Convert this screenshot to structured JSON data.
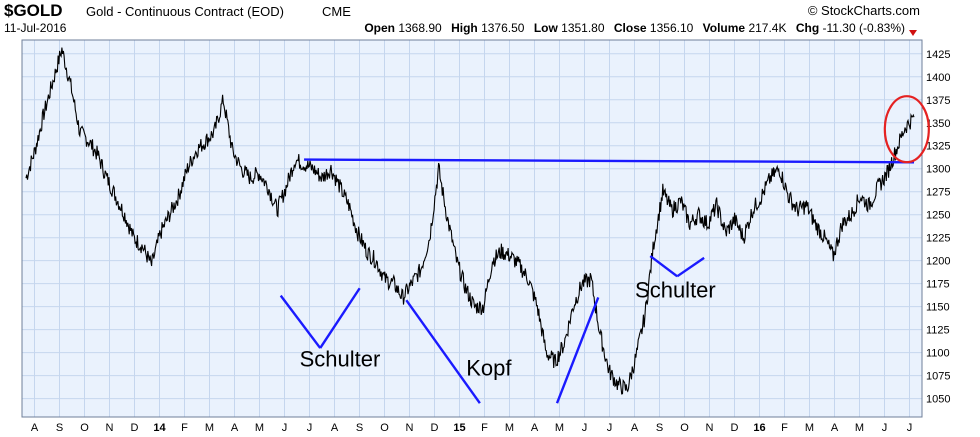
{
  "chart_data": {
    "type": "line",
    "symbol": "$GOLD",
    "title": "Gold - Continuous Contract (EOD)",
    "exchange": "CME",
    "date": "11-Jul-2016",
    "source": "© StockCharts.com",
    "stats": [
      {
        "label": "Open",
        "value": "1368.90"
      },
      {
        "label": "High",
        "value": "1376.50"
      },
      {
        "label": "Low",
        "value": "1351.80"
      },
      {
        "label": "Close",
        "value": "1356.10"
      },
      {
        "label": "Volume",
        "value": "217.4K"
      },
      {
        "label": "Chg",
        "value": "-11.30 (-0.83%)"
      }
    ],
    "ylim": [
      1030,
      1440
    ],
    "y_ticks": [
      1050,
      1075,
      1100,
      1125,
      1150,
      1175,
      1200,
      1225,
      1250,
      1275,
      1300,
      1325,
      1350,
      1375,
      1400,
      1425
    ],
    "x_ticks": [
      "A",
      "S",
      "O",
      "N",
      "D",
      "14",
      "F",
      "M",
      "A",
      "M",
      "J",
      "J",
      "A",
      "S",
      "O",
      "N",
      "D",
      "15",
      "F",
      "M",
      "A",
      "M",
      "J",
      "J",
      "A",
      "S",
      "O",
      "N",
      "D",
      "16",
      "F",
      "M",
      "A",
      "M",
      "J",
      "J"
    ],
    "x_bold": [
      "14",
      "15",
      "16"
    ],
    "series": [
      {
        "x": [
          0,
          0.5,
          1,
          1.5,
          2,
          2.5,
          3,
          3.5,
          4,
          4.5,
          5,
          5.5,
          6,
          6.5,
          7,
          7.5,
          8,
          8.5,
          9,
          9.5,
          10,
          10.5,
          11,
          11.5,
          12,
          12.5,
          13,
          13.5,
          14,
          14.5,
          15,
          15.5,
          16,
          16.5,
          17,
          17.5,
          18,
          18.5,
          19,
          19.5,
          20,
          20.5,
          21,
          21.5,
          22,
          22.5,
          23,
          23.5,
          24,
          24.5,
          25,
          25.5,
          26,
          26.5,
          27,
          27.5,
          28,
          28.5,
          29,
          29.5,
          30,
          30.5,
          31,
          31.5,
          32,
          32.5,
          33,
          33.5,
          34,
          34.5,
          35
        ],
        "y": [
          1290,
          1320,
          1360,
          1395,
          1430,
          1390,
          1340,
          1330,
          1315,
          1290,
          1270,
          1250,
          1225,
          1215,
          1195,
          1230,
          1250,
          1270,
          1300,
          1320,
          1330,
          1340,
          1375,
          1320,
          1300,
          1290,
          1295,
          1280,
          1255,
          1280,
          1310,
          1305,
          1300,
          1290,
          1300,
          1280,
          1260,
          1230,
          1210,
          1200,
          1180,
          1175,
          1160,
          1175,
          1190,
          1225,
          1300,
          1245,
          1200,
          1170,
          1150,
          1150,
          1200,
          1210,
          1205,
          1195,
          1180,
          1150,
          1100,
          1090,
          1110,
          1150,
          1175,
          1180,
          1120,
          1080,
          1065,
          1060,
          1095,
          1140,
          1220
        ],
        "xdetail": [
          35,
          35.5,
          36,
          36.5,
          37,
          37.5,
          38,
          38.5,
          39,
          39.5,
          40,
          40.5,
          41,
          41.5,
          42,
          42.5,
          43,
          43.5,
          44,
          44.5,
          45,
          45.5,
          46,
          46.5,
          47,
          47.5,
          48,
          48.5,
          49,
          49.5
        ],
        "ydetail": [
          1220,
          1275,
          1255,
          1265,
          1240,
          1250,
          1240,
          1260,
          1230,
          1245,
          1225,
          1255,
          1270,
          1290,
          1300,
          1270,
          1255,
          1260,
          1240,
          1225,
          1205,
          1240,
          1250,
          1270,
          1260,
          1280,
          1295,
          1320,
          1345,
          1356
        ]
      }
    ],
    "lines": [
      {
        "x": [
          15.5,
          49.5
        ],
        "y": [
          1310,
          1307
        ]
      },
      {
        "x": [
          14.2,
          16.4
        ],
        "y": [
          1162,
          1105
        ]
      },
      {
        "x": [
          16.4,
          18.6
        ],
        "y": [
          1105,
          1170
        ]
      },
      {
        "x": [
          21.2,
          25.3
        ],
        "y": [
          1157,
          1045
        ]
      },
      {
        "x": [
          29.6,
          31.9
        ],
        "y": [
          1045,
          1160
        ]
      },
      {
        "x": [
          34.8,
          36.3
        ],
        "y": [
          1205,
          1183
        ]
      },
      {
        "x": [
          36.3,
          37.8
        ],
        "y": [
          1183,
          1203
        ]
      }
    ],
    "annotations": [
      {
        "text": "Schulter",
        "x": 17.5,
        "y": 1085
      },
      {
        "text": "Kopf",
        "x": 25.8,
        "y": 1075
      },
      {
        "text": "Schulter",
        "x": 36.2,
        "y": 1160
      }
    ],
    "line_color": "#000000",
    "trend_color": "#1a1aff",
    "highlight_color": "#e52222",
    "grid": true,
    "background": "#eaf2fd"
  }
}
